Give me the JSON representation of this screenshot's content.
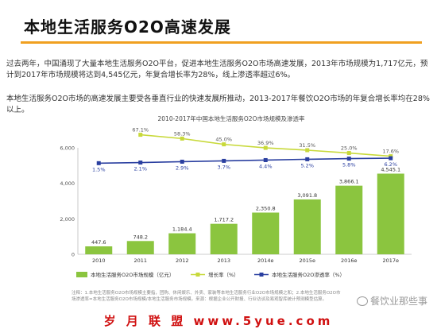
{
  "page": {
    "title": "本地生活服务O2O高速发展",
    "paragraph1": "过去两年，中国涌现了大量本地生活服务O2O平台，促进本地生活服务O2O市场高速发展，2013年市场规模为1,717亿元，预计到2017年市场规模将达到4,545亿元，年复合增长率为28%，线上渗透率超过6%。",
    "paragraph2": "本地生活服务O2O市场的高速发展主要受各垂直行业的快速发展所推动，2013-2017年餐饮O2O市场的年复合增长率均在28%以上。",
    "notes": "注释：1.本地生活服务O2O市场规模主要指，团购、休闲娱乐、外卖、家装等本地生活服务行业O2O市场规模之和；2.本地生活服务O2O市场渗透率=本地生活服务O2O市场规模/本地生活服务市场规模。来源：根据企业公开财报、行业访谈及易观智库统计预测模型估算。",
    "watermark": "餐饮业那些事",
    "site_banner": "岁 月 联 盟 www.5yue.com"
  },
  "colors": {
    "bar": "#8bc53f",
    "growth_line": "#c8d93a",
    "penetration_line": "#2a3fa0",
    "title_rule": "#f0a020",
    "banner": "#d01010"
  },
  "chart_data": {
    "type": "bar",
    "title": "2010-2017年中国本地生活服务O2O市场规模及渗透率",
    "categories": [
      "2010",
      "2011",
      "2012",
      "2013",
      "2014e",
      "2015e",
      "2016e",
      "2017e"
    ],
    "series": [
      {
        "name": "本地生活服务O2O市场规模（亿元）",
        "type": "bar",
        "values": [
          447.6,
          748.2,
          1184.4,
          1717.2,
          2350.8,
          3091.8,
          3866.1,
          4545.1
        ],
        "labels": [
          "447.6",
          "748.2",
          "1,184.4",
          "1,717.2",
          "2,350.8",
          "3,091.8",
          "3,866.1",
          "4,545.1"
        ]
      },
      {
        "name": "增长率（%）",
        "type": "line",
        "values": [
          null,
          67.1,
          58.3,
          45.0,
          36.9,
          31.5,
          25.0,
          17.6
        ],
        "labels": [
          "",
          "67.1%",
          "58.3%",
          "45.0%",
          "36.9%",
          "31.5%",
          "25.0%",
          "17.6%"
        ]
      },
      {
        "name": "本地生活服务O2O渗透率（%）",
        "type": "line",
        "values": [
          1.5,
          2.1,
          2.9,
          3.7,
          4.4,
          5.2,
          5.8,
          6.2
        ],
        "labels": [
          "1.5%",
          "2.1%",
          "2.9%",
          "3.7%",
          "4.4%",
          "5.2%",
          "5.8%",
          "6.2%"
        ]
      }
    ],
    "y_ticks": [
      "0",
      "2,000",
      "4,000",
      "6,000"
    ],
    "ylim": [
      0,
      6000
    ],
    "legend_position": "bottom",
    "grid": false
  }
}
